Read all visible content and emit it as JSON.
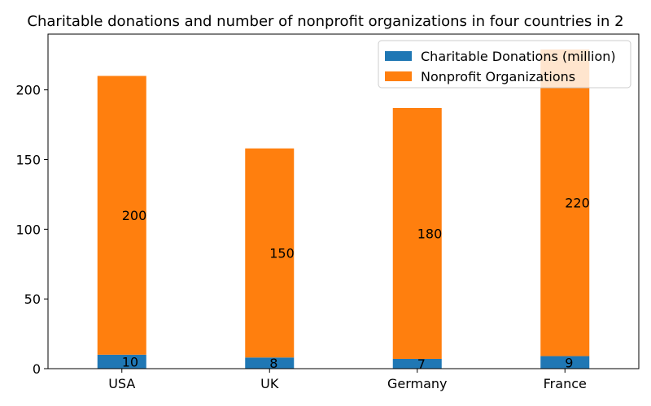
{
  "chart_data": {
    "type": "bar",
    "stacked": true,
    "title": "Charitable donations and number of nonprofit organizations in four countries in 2",
    "xlabel": "",
    "ylabel": "",
    "categories": [
      "USA",
      "UK",
      "Germany",
      "France"
    ],
    "ylim": [
      0,
      240
    ],
    "yticks": [
      0,
      50,
      100,
      150,
      200
    ],
    "grid": false,
    "legend_position": "top-right",
    "series": [
      {
        "name": "Charitable Donations (million)",
        "values": [
          10,
          8,
          7,
          9
        ],
        "color": "#1f77b4"
      },
      {
        "name": "Nonprofit Organizations",
        "values": [
          200,
          150,
          180,
          220
        ],
        "color": "#ff7f0e"
      }
    ],
    "data_labels": {
      "series_0": [
        "10",
        "8",
        "7",
        "9"
      ],
      "series_1": [
        "200",
        "150",
        "180",
        "220"
      ]
    }
  }
}
